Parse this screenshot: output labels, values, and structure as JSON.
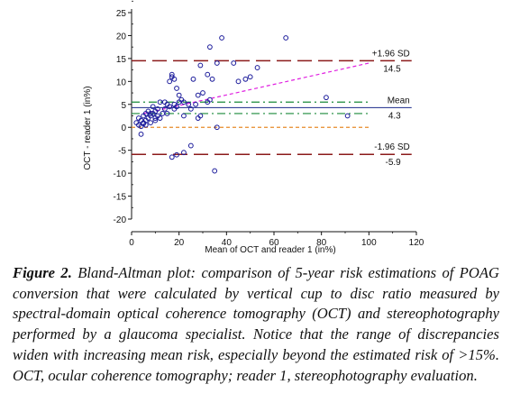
{
  "chart_data": {
    "type": "scatter",
    "xlabel": "Mean of OCT and reader 1 (in%)",
    "ylabel": "OCT - reader 1 (in%)",
    "xlim": [
      0,
      120
    ],
    "ylim": [
      -20,
      25
    ],
    "xticks": [
      0,
      20,
      40,
      60,
      80,
      100,
      120
    ],
    "yticks": [
      -20,
      -15,
      -10,
      -5,
      0,
      5,
      10,
      15,
      20,
      25
    ],
    "grid": false,
    "reference_lines": [
      {
        "label": "+1.96 SD",
        "value": 14.5,
        "value_label": "14.5",
        "style": "long-dash",
        "color": "#8b1a1a"
      },
      {
        "label": "Mean",
        "value": 4.3,
        "value_label": "4.3",
        "style": "solid",
        "color": "#1a2a8a"
      },
      {
        "label": "-1.96 SD",
        "value": -5.9,
        "value_label": "-5.9",
        "style": "long-dash",
        "color": "#8b1a1a"
      }
    ],
    "extra_lines": [
      {
        "type": "hline",
        "y": 5.5,
        "style": "dash-dot",
        "color": "#1a8a3a"
      },
      {
        "type": "hline",
        "y": 3.0,
        "style": "dash-dot",
        "color": "#1a8a3a"
      },
      {
        "type": "hline",
        "y": 0,
        "style": "dashed",
        "color": "#e88a2a"
      },
      {
        "type": "regression",
        "x": [
          5,
          100
        ],
        "y": [
          3.0,
          14.0
        ],
        "style": "dashed",
        "color": "#e020e0"
      }
    ],
    "points": [
      {
        "x": 2,
        "y": 1.0
      },
      {
        "x": 3,
        "y": 2.0
      },
      {
        "x": 3,
        "y": 0.5
      },
      {
        "x": 4,
        "y": 1.5
      },
      {
        "x": 4,
        "y": -1.5
      },
      {
        "x": 4,
        "y": 0.2
      },
      {
        "x": 5,
        "y": 2.5
      },
      {
        "x": 5,
        "y": 1.0
      },
      {
        "x": 5,
        "y": 0.8
      },
      {
        "x": 6,
        "y": 3.0
      },
      {
        "x": 6,
        "y": 1.5
      },
      {
        "x": 6,
        "y": 0.5
      },
      {
        "x": 7,
        "y": 2.0
      },
      {
        "x": 7,
        "y": 3.5
      },
      {
        "x": 8,
        "y": 1.0
      },
      {
        "x": 8,
        "y": 3.0
      },
      {
        "x": 8,
        "y": 2.5
      },
      {
        "x": 9,
        "y": 4.5
      },
      {
        "x": 9,
        "y": 3.0
      },
      {
        "x": 10,
        "y": 2.0
      },
      {
        "x": 10,
        "y": 3.5
      },
      {
        "x": 10,
        "y": 1.5
      },
      {
        "x": 11,
        "y": 2.5
      },
      {
        "x": 11,
        "y": 4.0
      },
      {
        "x": 12,
        "y": 5.5
      },
      {
        "x": 12,
        "y": 2.0
      },
      {
        "x": 13,
        "y": 3.0
      },
      {
        "x": 14,
        "y": 5.5
      },
      {
        "x": 14,
        "y": 4.0
      },
      {
        "x": 15,
        "y": 3.0
      },
      {
        "x": 15,
        "y": 5.0
      },
      {
        "x": 16,
        "y": 4.5
      },
      {
        "x": 16,
        "y": 10.0
      },
      {
        "x": 17,
        "y": 11.0
      },
      {
        "x": 17,
        "y": 11.5
      },
      {
        "x": 18,
        "y": 10.5
      },
      {
        "x": 18,
        "y": 5.0
      },
      {
        "x": 18,
        "y": 4.0
      },
      {
        "x": 19,
        "y": 8.5
      },
      {
        "x": 19,
        "y": 4.5
      },
      {
        "x": 20,
        "y": 7.0
      },
      {
        "x": 20,
        "y": 5.5
      },
      {
        "x": 21,
        "y": 6.0
      },
      {
        "x": 22,
        "y": 5.5
      },
      {
        "x": 22,
        "y": 2.5
      },
      {
        "x": 24,
        "y": 5.0
      },
      {
        "x": 25,
        "y": 4.0
      },
      {
        "x": 26,
        "y": 10.5
      },
      {
        "x": 27,
        "y": 5.0
      },
      {
        "x": 28,
        "y": 7.0
      },
      {
        "x": 28,
        "y": 2.0
      },
      {
        "x": 29,
        "y": 13.5
      },
      {
        "x": 29,
        "y": 2.5
      },
      {
        "x": 30,
        "y": 7.5
      },
      {
        "x": 32,
        "y": 5.5
      },
      {
        "x": 32,
        "y": 11.5
      },
      {
        "x": 33,
        "y": 6.0
      },
      {
        "x": 33,
        "y": 17.5
      },
      {
        "x": 34,
        "y": 10.5
      },
      {
        "x": 36,
        "y": 14.0
      },
      {
        "x": 38,
        "y": 19.5
      },
      {
        "x": 36,
        "y": 0.0
      },
      {
        "x": 35,
        "y": -9.5
      },
      {
        "x": 17,
        "y": -6.5
      },
      {
        "x": 19,
        "y": -6.0
      },
      {
        "x": 22,
        "y": -5.5
      },
      {
        "x": 25,
        "y": -4.0
      },
      {
        "x": 43,
        "y": 14.0
      },
      {
        "x": 45,
        "y": 10.0
      },
      {
        "x": 48,
        "y": 10.5
      },
      {
        "x": 50,
        "y": 11.0
      },
      {
        "x": 53,
        "y": 13.0
      },
      {
        "x": 65,
        "y": 19.5
      },
      {
        "x": 82,
        "y": 6.5
      },
      {
        "x": 91,
        "y": 2.5
      }
    ]
  },
  "caption": {
    "label": "Figure 2.",
    "text": " Bland-Altman plot: comparison of 5-year risk estimations of POAG conversion that were calculated by vertical cup to disc ratio measured by spectral-domain optical coherence tomography (OCT) and stereophotography performed by a glaucoma specialist. Notice that the range of discrepancies widen with increasing mean risk, especially beyond the estimated risk of >15%. OCT, ocular coherence tomography; reader 1, stereophotography evaluation."
  }
}
